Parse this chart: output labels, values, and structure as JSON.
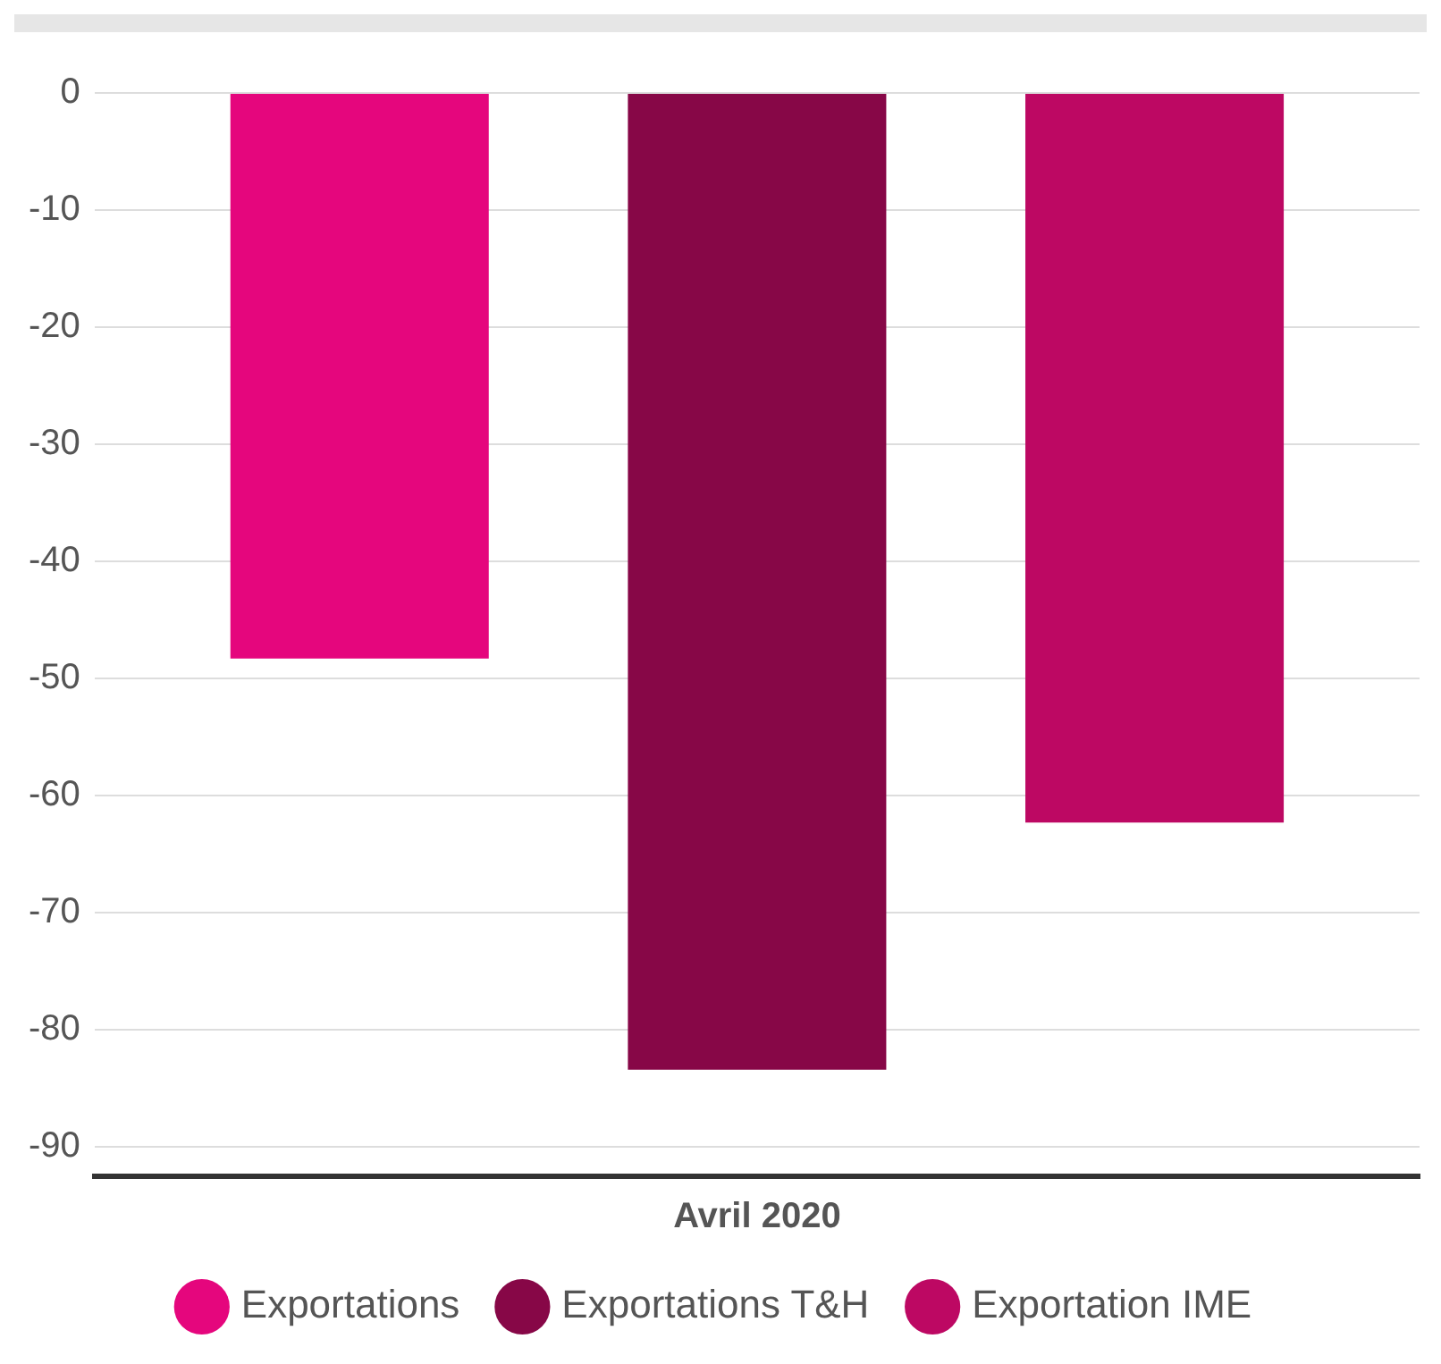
{
  "chart_data": {
    "type": "bar",
    "categories": [
      "Avril 2020"
    ],
    "series": [
      {
        "name": "Exportations",
        "color": "#e5067d",
        "values": [
          -48.3
        ]
      },
      {
        "name": "Exportations T&H",
        "color": "#870747",
        "values": [
          -83.4
        ]
      },
      {
        "name": "Exportation IME",
        "color": "#bd0863",
        "values": [
          -62.3
        ]
      }
    ],
    "ylim": [
      -92.5,
      0
    ],
    "yticks": [
      0,
      -10,
      -20,
      -30,
      -40,
      -50,
      -60,
      -70,
      -80,
      -90
    ],
    "grid": "y",
    "legend": "bottom"
  }
}
